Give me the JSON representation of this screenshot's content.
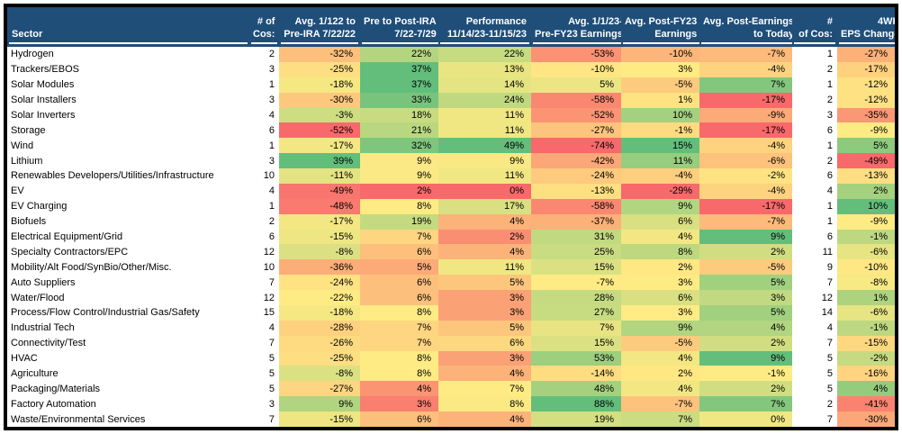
{
  "colors": {
    "header_bg": "#1F4E79",
    "header_text": "#FFFFFF",
    "border": "#000000",
    "cell_text": "#000000",
    "scale_red": "#F8696B",
    "scale_yellow": "#FFEB84",
    "scale_green": "#63BE7B"
  },
  "table": {
    "columns": [
      {
        "key": "sector",
        "type": "text",
        "line1": "",
        "line2": "Sector"
      },
      {
        "key": "cos-a",
        "type": "count",
        "line1": "# of",
        "line2": "Cos:"
      },
      {
        "key": "pre-ira",
        "type": "percent",
        "line1": "Avg. 1/122 to",
        "line2": "Pre-IRA 7/22/22"
      },
      {
        "key": "pre-post-ira",
        "type": "percent",
        "line1": "Pre to Post-IRA",
        "line2": "7/22-7/29"
      },
      {
        "key": "performance",
        "type": "percent",
        "line1": "Performance",
        "line2": "11/14/23-11/15/23"
      },
      {
        "key": "pre-fy23",
        "type": "percent",
        "line1": "Avg. 1/1/23-",
        "line2": "Pre-FY23 Earnings"
      },
      {
        "key": "post-fy23",
        "type": "percent",
        "line1": "Avg. Post-FY23",
        "line2": "Earnings"
      },
      {
        "key": "post-earnings",
        "type": "percent",
        "line1": "Avg. Post-Earnings",
        "line2": "to Today"
      },
      {
        "key": "cos-b",
        "type": "count",
        "line1": "#",
        "line2": "of Cos:"
      },
      {
        "key": "eps-4wk",
        "type": "percent",
        "line1": "4WK",
        "line2": "EPS Change"
      }
    ],
    "rows": [
      [
        "Hydrogen",
        2,
        -32,
        22,
        22,
        -53,
        -10,
        -7,
        1,
        -27
      ],
      [
        "Trackers/EBOS",
        3,
        -25,
        37,
        13,
        -10,
        3,
        -4,
        2,
        -17
      ],
      [
        "Solar Modules",
        1,
        -18,
        37,
        14,
        5,
        -5,
        7,
        1,
        -12
      ],
      [
        "Solar Installers",
        3,
        -30,
        33,
        24,
        -58,
        1,
        -17,
        2,
        -12
      ],
      [
        "Solar Inverters",
        4,
        -3,
        18,
        11,
        -52,
        10,
        -9,
        3,
        -35
      ],
      [
        "Storage",
        6,
        -52,
        21,
        11,
        -27,
        -1,
        -17,
        6,
        -9
      ],
      [
        "Wind",
        1,
        -17,
        32,
        49,
        -74,
        15,
        -4,
        1,
        5
      ],
      [
        "Lithium",
        3,
        39,
        9,
        9,
        -42,
        11,
        -6,
        2,
        -49
      ],
      [
        "Renewables Developers/Utilities/Infrastructure",
        10,
        -11,
        9,
        11,
        -24,
        -4,
        -2,
        6,
        -13
      ],
      [
        "EV",
        4,
        -49,
        2,
        0,
        -13,
        -29,
        -4,
        4,
        2
      ],
      [
        "EV Charging",
        1,
        -48,
        8,
        17,
        -58,
        9,
        -17,
        1,
        10
      ],
      [
        "Biofuels",
        2,
        -17,
        19,
        4,
        -37,
        6,
        -7,
        1,
        -9
      ],
      [
        "Electrical Equipment/Grid",
        6,
        -15,
        7,
        2,
        31,
        4,
        9,
        6,
        -1
      ],
      [
        "Specialty Contractors/EPC",
        12,
        -8,
        6,
        4,
        25,
        8,
        2,
        11,
        -6
      ],
      [
        "Mobility/Alt Food/SynBio/Other/Misc.",
        10,
        -36,
        5,
        11,
        15,
        2,
        -5,
        9,
        -10
      ],
      [
        "Auto Suppliers",
        7,
        -24,
        6,
        5,
        -7,
        3,
        5,
        7,
        -8
      ],
      [
        "Water/Flood",
        12,
        -22,
        6,
        3,
        28,
        6,
        3,
        12,
        1
      ],
      [
        "Process/Flow Control/Industrial Gas/Safety",
        15,
        -18,
        8,
        3,
        27,
        3,
        5,
        14,
        -6
      ],
      [
        "Industrial Tech",
        4,
        -28,
        7,
        5,
        7,
        9,
        4,
        4,
        -1
      ],
      [
        "Connectivity/Test",
        7,
        -26,
        7,
        6,
        15,
        -5,
        2,
        7,
        -15
      ],
      [
        "HVAC",
        5,
        -25,
        8,
        3,
        53,
        4,
        9,
        5,
        -2
      ],
      [
        "Agriculture",
        5,
        -8,
        8,
        4,
        -14,
        2,
        -1,
        5,
        -16
      ],
      [
        "Packaging/Materials",
        5,
        -27,
        4,
        7,
        48,
        4,
        2,
        5,
        4
      ],
      [
        "Factory Automation",
        3,
        9,
        3,
        8,
        88,
        -7,
        7,
        2,
        -41
      ],
      [
        "Waste/Environmental Services",
        7,
        -15,
        6,
        4,
        19,
        7,
        0,
        7,
        -30
      ]
    ]
  }
}
